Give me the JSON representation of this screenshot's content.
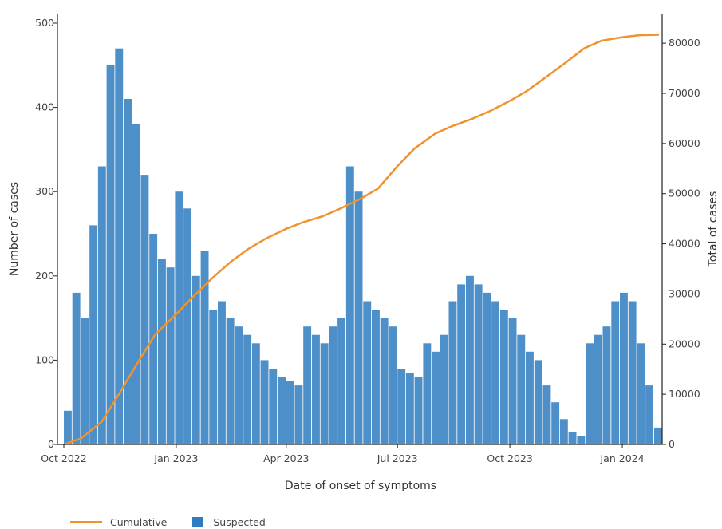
{
  "chart_data": {
    "type": "bar+line",
    "x_tick_labels": [
      "Oct 2022",
      "Jan 2023",
      "Apr 2023",
      "Jul 2023",
      "Oct 2023",
      "Jan 2024"
    ],
    "x_tick_dates": [
      "2022-10-01",
      "2023-01-01",
      "2023-04-01",
      "2023-07-01",
      "2023-10-01",
      "2024-01-01"
    ],
    "x_range": [
      "2022-10-01",
      "2024-01-31"
    ],
    "xlabel": "Date of onset of symptoms",
    "ylabel_left": "Number of cases",
    "ylabel_right": "Total of cases",
    "ylim_left": [
      0,
      500
    ],
    "ylim_right": [
      0,
      85000
    ],
    "y_ticks_left": [
      0,
      100,
      200,
      300,
      400,
      500
    ],
    "y_ticks_right": [
      0,
      10000,
      20000,
      30000,
      40000,
      50000,
      60000,
      70000,
      80000
    ],
    "legend_position": "bottom-left",
    "series": [
      {
        "name": "Suspected",
        "type": "bar",
        "color": "#2e7bbf",
        "x": [
          "2022-10-01",
          "2022-10-08",
          "2022-10-15",
          "2022-10-22",
          "2022-10-29",
          "2022-11-05",
          "2022-11-12",
          "2022-11-19",
          "2022-11-26",
          "2022-12-03",
          "2022-12-10",
          "2022-12-17",
          "2022-12-24",
          "2022-12-31",
          "2023-01-07",
          "2023-01-14",
          "2023-01-21",
          "2023-01-28",
          "2023-02-04",
          "2023-02-11",
          "2023-02-18",
          "2023-02-25",
          "2023-03-04",
          "2023-03-11",
          "2023-03-18",
          "2023-03-25",
          "2023-04-01",
          "2023-04-08",
          "2023-04-15",
          "2023-04-22",
          "2023-04-29",
          "2023-05-06",
          "2023-05-13",
          "2023-05-20",
          "2023-05-27",
          "2023-06-03",
          "2023-06-10",
          "2023-06-17",
          "2023-06-24",
          "2023-07-01",
          "2023-07-08",
          "2023-07-15",
          "2023-07-22",
          "2023-07-29",
          "2023-08-05",
          "2023-08-12",
          "2023-08-19",
          "2023-08-26",
          "2023-09-02",
          "2023-09-09",
          "2023-09-16",
          "2023-09-23",
          "2023-09-30",
          "2023-10-07",
          "2023-10-14",
          "2023-10-21",
          "2023-10-28",
          "2023-11-04",
          "2023-11-11",
          "2023-11-18",
          "2023-11-25",
          "2023-12-02",
          "2023-12-09",
          "2023-12-16",
          "2023-12-23",
          "2023-12-30",
          "2024-01-06",
          "2024-01-13",
          "2024-01-20",
          "2024-01-27"
        ],
        "values": [
          40,
          180,
          150,
          260,
          330,
          450,
          470,
          410,
          380,
          320,
          250,
          220,
          210,
          300,
          280,
          200,
          230,
          160,
          170,
          150,
          140,
          130,
          120,
          100,
          90,
          80,
          75,
          70,
          140,
          130,
          120,
          140,
          150,
          330,
          300,
          170,
          160,
          150,
          140,
          90,
          85,
          80,
          120,
          110,
          130,
          170,
          190,
          200,
          190,
          180,
          170,
          160,
          150,
          130,
          110,
          100,
          70,
          50,
          30,
          15,
          10,
          120,
          130,
          140,
          170,
          180,
          170,
          120,
          70,
          20
        ]
      },
      {
        "name": "Cumulative",
        "type": "line",
        "color": "#f0922e",
        "x": [
          "2022-10-01",
          "2022-10-15",
          "2022-11-01",
          "2022-11-15",
          "2022-12-01",
          "2022-12-15",
          "2023-01-01",
          "2023-01-15",
          "2023-02-01",
          "2023-02-15",
          "2023-03-01",
          "2023-03-15",
          "2023-04-01",
          "2023-04-15",
          "2023-05-01",
          "2023-05-15",
          "2023-06-01",
          "2023-06-15",
          "2023-07-01",
          "2023-07-15",
          "2023-08-01",
          "2023-08-15",
          "2023-09-01",
          "2023-09-15",
          "2023-10-01",
          "2023-10-15",
          "2023-11-01",
          "2023-11-15",
          "2023-12-01",
          "2023-12-15",
          "2024-01-01",
          "2024-01-15",
          "2024-01-31"
        ],
        "values": [
          0,
          1200,
          4500,
          10000,
          16500,
          22000,
          26000,
          29500,
          33500,
          36500,
          39000,
          41000,
          43000,
          44300,
          45500,
          47000,
          49000,
          51000,
          55500,
          59000,
          62000,
          63500,
          65000,
          66500,
          68500,
          70500,
          73500,
          76000,
          79000,
          80500,
          81200,
          81600,
          81700
        ]
      }
    ]
  }
}
